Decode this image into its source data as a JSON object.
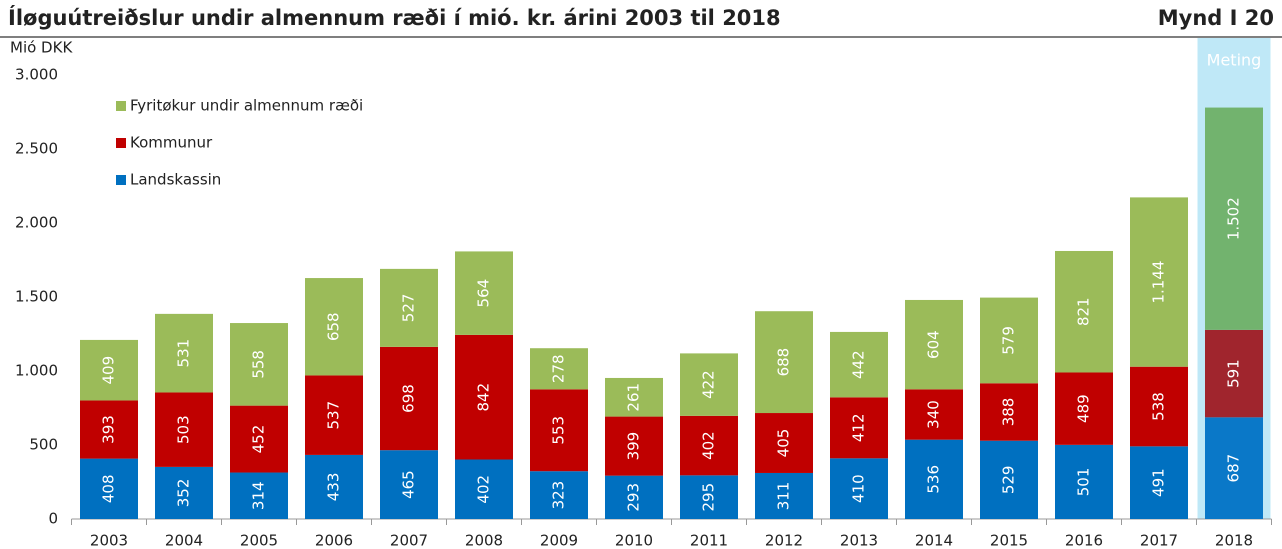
{
  "chart_data": {
    "type": "stacked_bar",
    "title": "Íløguútreiðslur undir almennum ræði í mió. kr. árini 2003 til 2018",
    "figure_label": "Mynd I 20",
    "y_label": "Mió DKK",
    "categories": [
      "2003",
      "2004",
      "2005",
      "2006",
      "2007",
      "2008",
      "2009",
      "2010",
      "2011",
      "2012",
      "2013",
      "2014",
      "2015",
      "2016",
      "2017",
      "2018"
    ],
    "series": [
      {
        "name": "Landskassin",
        "color": "#0070c0",
        "highlight_color": "#0a78c8",
        "values": [
          408,
          352,
          314,
          433,
          465,
          402,
          323,
          293,
          295,
          311,
          410,
          536,
          529,
          501,
          491,
          687
        ]
      },
      {
        "name": "Kommunur",
        "color": "#c00000",
        "highlight_color": "#a0252d",
        "values": [
          393,
          503,
          452,
          537,
          698,
          842,
          553,
          399,
          402,
          405,
          412,
          340,
          388,
          489,
          538,
          591
        ]
      },
      {
        "name": "Fyritøkur undir almennum ræði",
        "color": "#9bbb59",
        "highlight_color": "#72b36e",
        "values": [
          409,
          531,
          558,
          658,
          527,
          564,
          278,
          261,
          422,
          688,
          442,
          604,
          579,
          821,
          1144,
          1502
        ],
        "value_labels": [
          "409",
          "531",
          "558",
          "658",
          "527",
          "564",
          "278",
          "261",
          "422",
          "688",
          "442",
          "604",
          "579",
          "821",
          "1.144",
          "1.502"
        ]
      }
    ],
    "highlight_categories": [
      "2018"
    ],
    "highlight_label": "Meting",
    "highlight_band_color": "#bfe8f7",
    "ylim": [
      0,
      3000
    ],
    "yticks": [
      0,
      500,
      {
        "value": 1000,
        "label": "1.000"
      },
      {
        "value": 1500,
        "label": "1.500"
      },
      {
        "value": 2000,
        "label": "2.000"
      },
      {
        "value": 2500,
        "label": "2.500"
      },
      {
        "value": 3000,
        "label": "3.000"
      }
    ],
    "grid": false,
    "legend": "upper left"
  }
}
